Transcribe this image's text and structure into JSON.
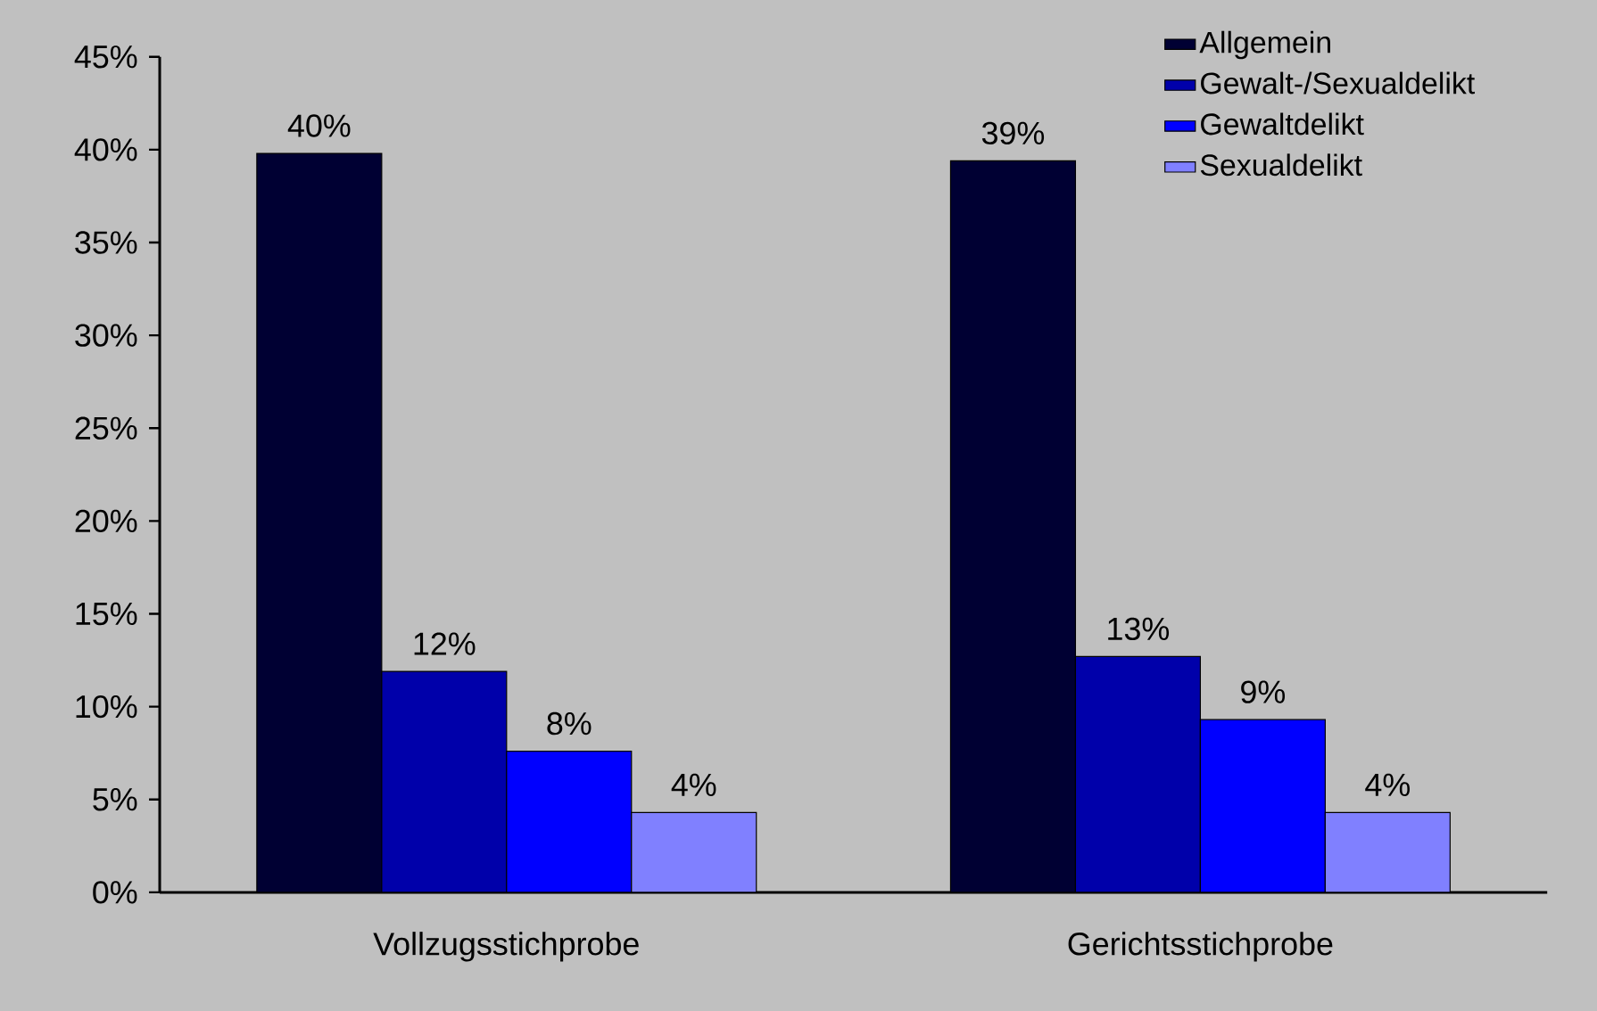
{
  "chart_data": {
    "type": "bar",
    "categories": [
      "Vollzugsstichprobe",
      "Gerichtsstichprobe"
    ],
    "series": [
      {
        "name": "Allgemein",
        "color": "#000033",
        "values": [
          39.8,
          39.4
        ],
        "value_labels": [
          "40%",
          "39%"
        ]
      },
      {
        "name": "Gewalt-/Sexualdelikt",
        "color": "#0000aa",
        "values": [
          11.9,
          12.7
        ],
        "value_labels": [
          "12%",
          "13%"
        ]
      },
      {
        "name": "Gewaltdelikt",
        "color": "#0000ff",
        "values": [
          7.6,
          9.3
        ],
        "value_labels": [
          "8%",
          "9%"
        ]
      },
      {
        "name": "Sexualdelikt",
        "color": "#8080ff",
        "values": [
          4.3,
          4.3
        ],
        "value_labels": [
          "4%",
          "4%"
        ]
      }
    ],
    "ylim": [
      0,
      45
    ],
    "yticks": [
      {
        "value": 0,
        "label": "0%"
      },
      {
        "value": 5,
        "label": "5%"
      },
      {
        "value": 10,
        "label": "10%"
      },
      {
        "value": 15,
        "label": "15%"
      },
      {
        "value": 20,
        "label": "20%"
      },
      {
        "value": 25,
        "label": "25%"
      },
      {
        "value": 30,
        "label": "30%"
      },
      {
        "value": 35,
        "label": "35%"
      },
      {
        "value": 40,
        "label": "40%"
      },
      {
        "value": 45,
        "label": "45%"
      }
    ],
    "grid": false,
    "legend": "top right"
  }
}
